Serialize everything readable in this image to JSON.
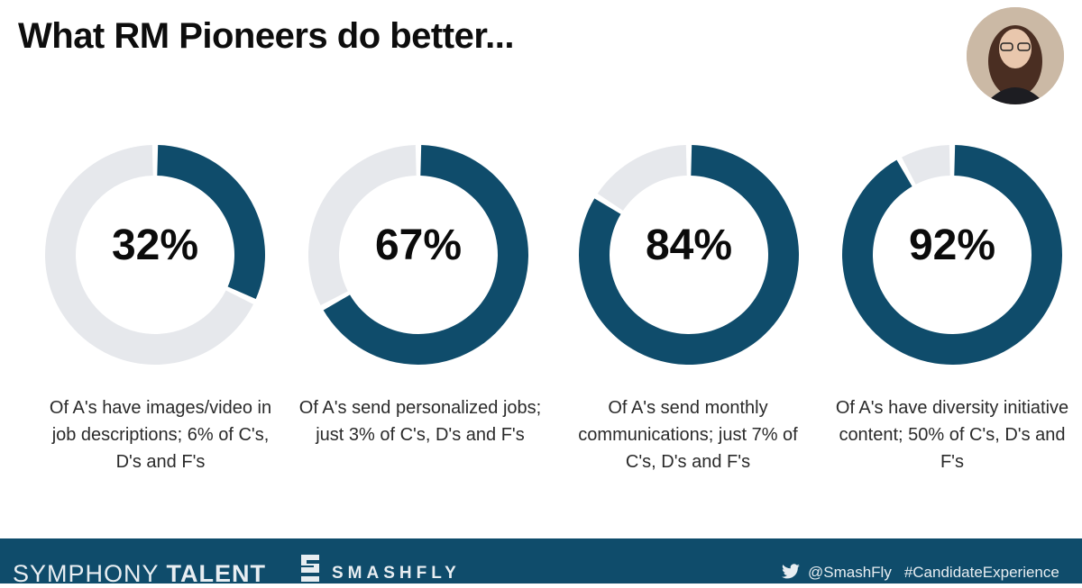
{
  "title": "What RM Pioneers do better...",
  "colors": {
    "accent": "#0f4c6b",
    "track": "#e6e8ec",
    "footer": "#0f4c6b"
  },
  "chart_data": [
    {
      "type": "pie",
      "values": [
        32,
        68
      ],
      "label": "32%",
      "caption": "Of A's have images/video in job descriptions; 6% of C's, D's and F's"
    },
    {
      "type": "pie",
      "values": [
        67,
        33
      ],
      "label": "67%",
      "caption": "Of A's send personalized jobs; just 3% of C's, D's and F's"
    },
    {
      "type": "pie",
      "values": [
        84,
        16
      ],
      "label": "84%",
      "caption": "Of A's send monthly communications; just 7% of C's, D's and F's"
    },
    {
      "type": "pie",
      "values": [
        92,
        8
      ],
      "label": "92%",
      "caption": "Of A's have diversity initiative content; 50% of C's, D's and F's"
    }
  ],
  "footer": {
    "brand1_light": "SYMPHONY ",
    "brand1_bold": "TALENT",
    "brand2": "SMASHFLY",
    "twitter_handle": "@SmashFly",
    "hashtag": "#CandidateExperience"
  },
  "icons": {
    "avatar": "presenter-photo",
    "twitter": "twitter-bird-icon",
    "smashfly": "smashfly-logo-icon"
  }
}
